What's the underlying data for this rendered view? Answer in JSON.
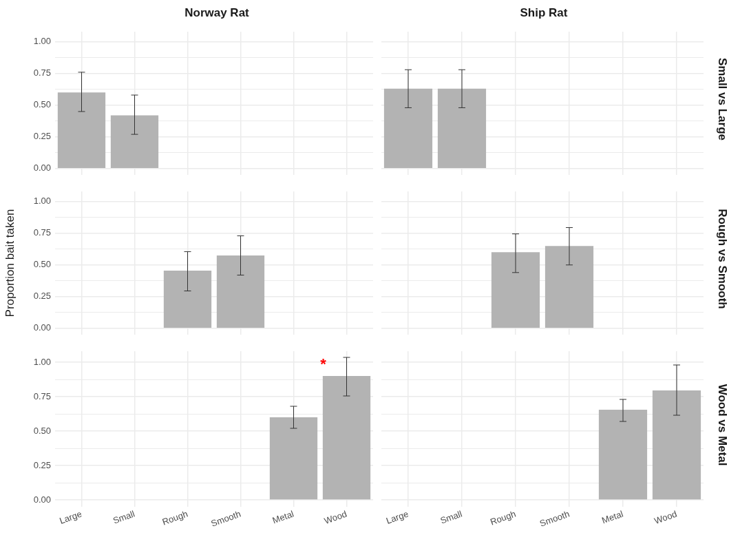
{
  "chart_data": [
    {
      "type": "bar",
      "title": "Norway Rat",
      "categories": [
        "Large",
        "Small",
        "Rough",
        "Smooth",
        "Metal",
        "Wood"
      ],
      "values": [
        0.6,
        0.42,
        null,
        null,
        null,
        null
      ],
      "errors": [
        [
          0.45,
          0.76
        ],
        [
          0.27,
          0.58
        ],
        null,
        null,
        null,
        null
      ],
      "color": "#b3b3b3",
      "ylim": [
        -0.05,
        1.08
      ],
      "yticks": [
        {
          "value": 0,
          "label": "0.00"
        },
        {
          "value": 0.125,
          "label": null
        },
        {
          "value": 0.25,
          "label": "0.25"
        },
        {
          "value": 0.375,
          "label": null
        },
        {
          "value": 0.5,
          "label": "0.50"
        },
        {
          "value": 0.625,
          "label": null
        },
        {
          "value": 0.75,
          "label": "0.75"
        },
        {
          "value": 0.875,
          "label": null
        },
        {
          "value": 1,
          "label": "1.00"
        }
      ],
      "grid": true,
      "tick_labels": "y"
    },
    {
      "type": "bar",
      "title": "Ship Rat",
      "y2label": "Small vs Large",
      "categories": [
        "Large",
        "Small",
        "Rough",
        "Smooth",
        "Metal",
        "Wood"
      ],
      "values": [
        0.63,
        0.63,
        null,
        null,
        null,
        null
      ],
      "errors": [
        [
          0.48,
          0.78
        ],
        [
          0.48,
          0.78
        ],
        null,
        null,
        null,
        null
      ],
      "color": "#b3b3b3",
      "ylim": [
        -0.05,
        1.08
      ],
      "yticks": [
        {
          "value": 0,
          "label": "0.00"
        },
        {
          "value": 0.125,
          "label": null
        },
        {
          "value": 0.25,
          "label": "0.25"
        },
        {
          "value": 0.375,
          "label": null
        },
        {
          "value": 0.5,
          "label": "0.50"
        },
        {
          "value": 0.625,
          "label": null
        },
        {
          "value": 0.75,
          "label": "0.75"
        },
        {
          "value": 0.875,
          "label": null
        },
        {
          "value": 1,
          "label": "1.00"
        }
      ],
      "grid": true,
      "tick_labels": false
    },
    {
      "type": "bar",
      "ylabel": "Proportion bait taken",
      "categories": [
        "Large",
        "Small",
        "Rough",
        "Smooth",
        "Metal",
        "Wood"
      ],
      "values": [
        null,
        null,
        0.455,
        0.575,
        null,
        null
      ],
      "errors": [
        null,
        null,
        [
          0.295,
          0.605
        ],
        [
          0.42,
          0.73
        ],
        null,
        null
      ],
      "color": "#b3b3b3",
      "ylim": [
        -0.05,
        1.08
      ],
      "yticks": [
        {
          "value": 0,
          "label": "0.00"
        },
        {
          "value": 0.125,
          "label": null
        },
        {
          "value": 0.25,
          "label": "0.25"
        },
        {
          "value": 0.375,
          "label": null
        },
        {
          "value": 0.5,
          "label": "0.50"
        },
        {
          "value": 0.625,
          "label": null
        },
        {
          "value": 0.75,
          "label": "0.75"
        },
        {
          "value": 0.875,
          "label": null
        },
        {
          "value": 1,
          "label": "1.00"
        }
      ],
      "grid": true,
      "tick_labels": "y"
    },
    {
      "type": "bar",
      "y2label": "Rough vs Smooth",
      "categories": [
        "Large",
        "Small",
        "Rough",
        "Smooth",
        "Metal",
        "Wood"
      ],
      "values": [
        null,
        null,
        0.6,
        0.65,
        null,
        null
      ],
      "errors": [
        null,
        null,
        [
          0.44,
          0.745
        ],
        [
          0.5,
          0.795
        ],
        null,
        null
      ],
      "color": "#b3b3b3",
      "ylim": [
        -0.05,
        1.08
      ],
      "yticks": [
        {
          "value": 0,
          "label": "0.00"
        },
        {
          "value": 0.125,
          "label": null
        },
        {
          "value": 0.25,
          "label": "0.25"
        },
        {
          "value": 0.375,
          "label": null
        },
        {
          "value": 0.5,
          "label": "0.50"
        },
        {
          "value": 0.625,
          "label": null
        },
        {
          "value": 0.75,
          "label": "0.75"
        },
        {
          "value": 0.875,
          "label": null
        },
        {
          "value": 1,
          "label": "1.00"
        }
      ],
      "grid": true,
      "tick_labels": false
    },
    {
      "type": "bar",
      "categories": [
        "Large",
        "Small",
        "Rough",
        "Smooth",
        "Metal",
        "Wood"
      ],
      "values": [
        null,
        null,
        null,
        null,
        0.6,
        0.9
      ],
      "errors": [
        null,
        null,
        null,
        null,
        [
          0.52,
          0.68
        ],
        [
          0.755,
          1.035
        ]
      ],
      "color": "#b3b3b3",
      "ylim": [
        -0.05,
        1.08
      ],
      "yticks": [
        {
          "value": 0,
          "label": "0.00"
        },
        {
          "value": 0.125,
          "label": null
        },
        {
          "value": 0.25,
          "label": "0.25"
        },
        {
          "value": 0.375,
          "label": null
        },
        {
          "value": 0.5,
          "label": "0.50"
        },
        {
          "value": 0.625,
          "label": null
        },
        {
          "value": 0.75,
          "label": "0.75"
        },
        {
          "value": 0.875,
          "label": null
        },
        {
          "value": 1,
          "label": "1.00"
        }
      ],
      "grid": true,
      "annotations": [
        {
          "text": "*",
          "x": "Wood",
          "y": 1.0
        }
      ]
    },
    {
      "type": "bar",
      "y2label": "Wood vs Metal",
      "categories": [
        "Large",
        "Small",
        "Rough",
        "Smooth",
        "Metal",
        "Wood"
      ],
      "values": [
        null,
        null,
        null,
        null,
        0.655,
        0.795
      ],
      "errors": [
        null,
        null,
        null,
        null,
        [
          0.57,
          0.73
        ],
        [
          0.615,
          0.98
        ]
      ],
      "color": "#b3b3b3",
      "ylim": [
        -0.05,
        1.08
      ],
      "yticks": [
        {
          "value": 0,
          "label": "0.00"
        },
        {
          "value": 0.125,
          "label": null
        },
        {
          "value": 0.25,
          "label": "0.25"
        },
        {
          "value": 0.375,
          "label": null
        },
        {
          "value": 0.5,
          "label": "0.50"
        },
        {
          "value": 0.625,
          "label": null
        },
        {
          "value": 0.75,
          "label": "0.75"
        },
        {
          "value": 0.875,
          "label": null
        },
        {
          "value": 1,
          "label": "1.00"
        }
      ],
      "grid": true,
      "tick_labels": "x"
    }
  ]
}
